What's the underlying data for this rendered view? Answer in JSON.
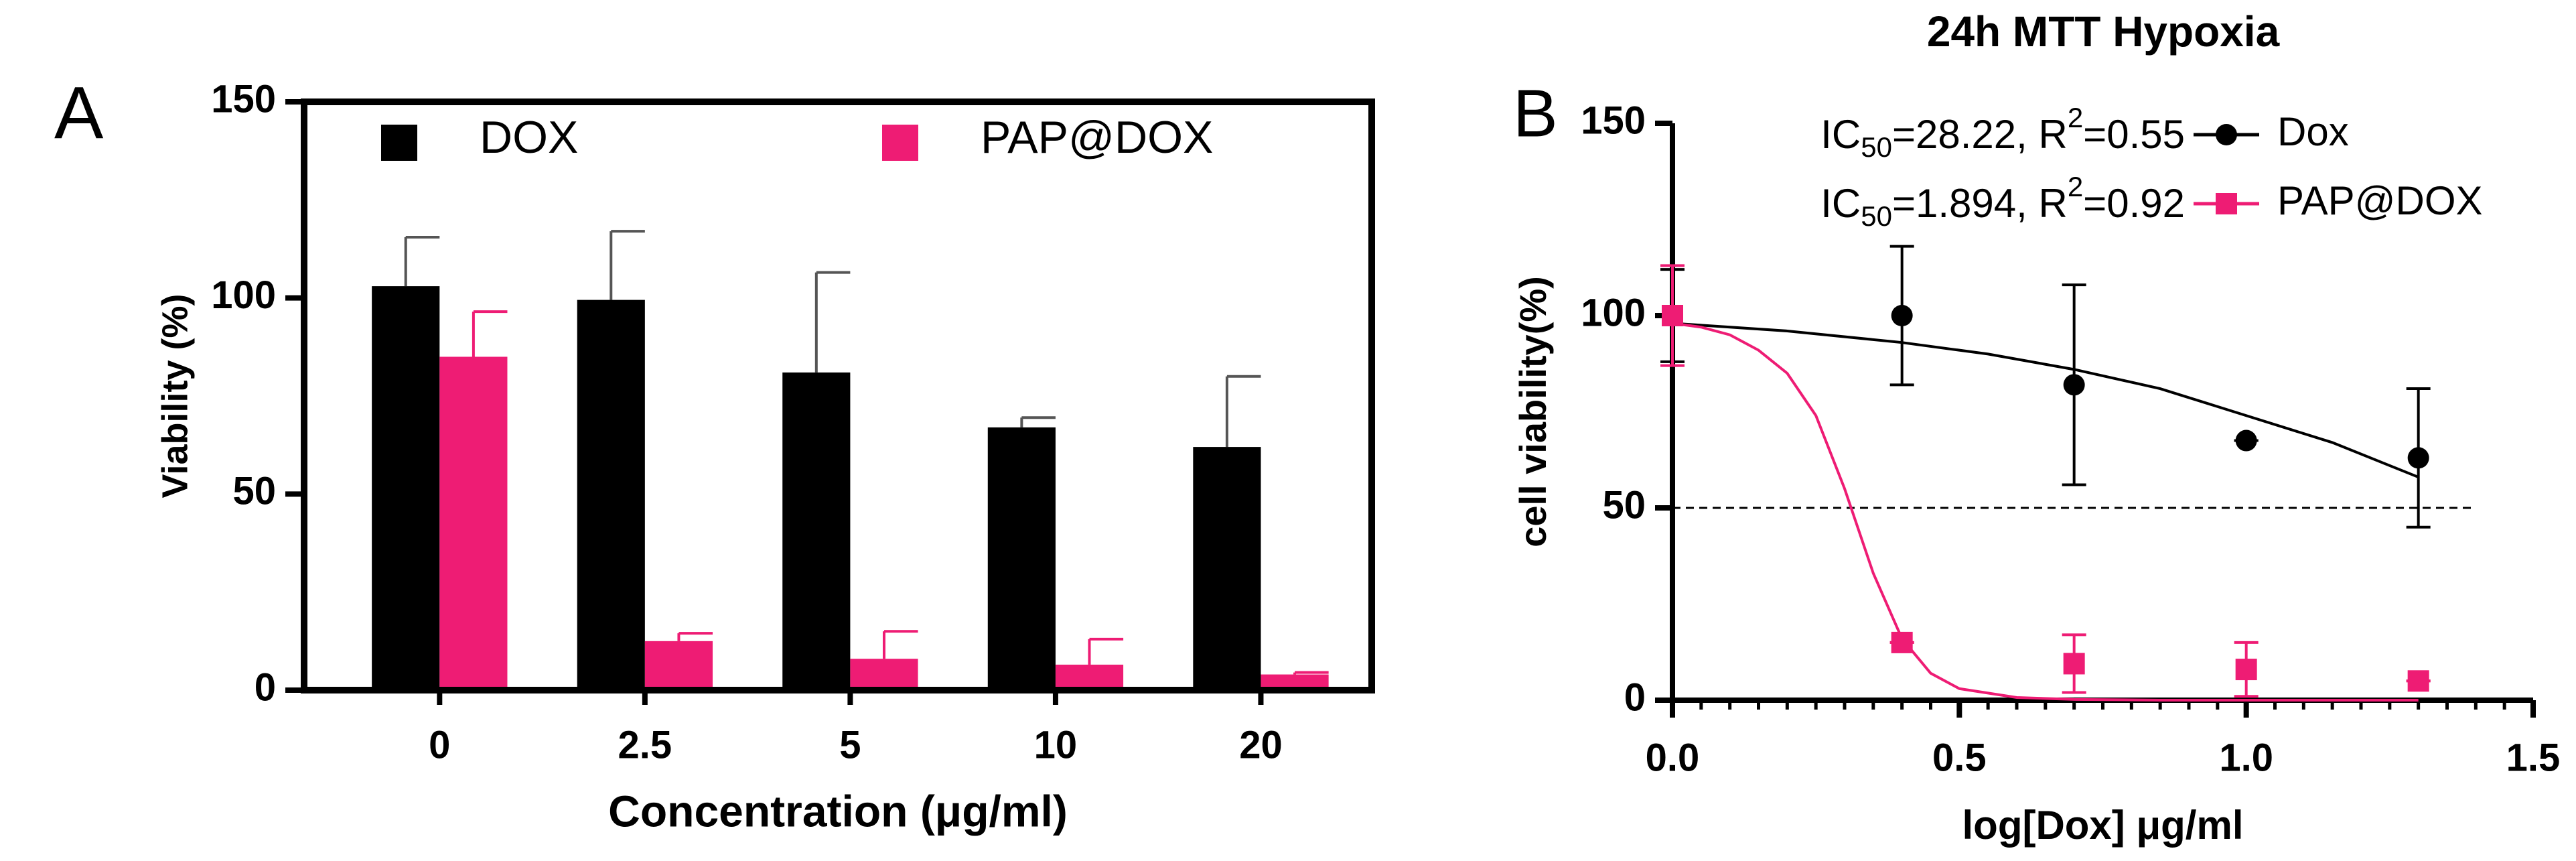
{
  "chart_data": [
    {
      "type": "bar",
      "panel_label": "A",
      "xlabel": "Concentration (μg/ml)",
      "ylabel": "Viability (%)",
      "categories": [
        "0",
        "2.5",
        "5",
        "10",
        "20"
      ],
      "series": [
        {
          "name": "DOX",
          "color": "#000000",
          "values": [
            103,
            99.5,
            81,
            67,
            62
          ],
          "errors": [
            12.5,
            17.5,
            25.5,
            2.5,
            18
          ]
        },
        {
          "name": "PAP@DOX",
          "color": "#ee1c74",
          "values": [
            85,
            12.5,
            8,
            6.5,
            4
          ],
          "errors": [
            11.5,
            2,
            7,
            6.5,
            0.5
          ]
        }
      ],
      "ylim": [
        0,
        150
      ],
      "yticks": [
        0,
        50,
        100,
        150
      ]
    },
    {
      "type": "scatter",
      "panel_label": "B",
      "title": "24h MTT Hypoxia",
      "xlabel": "log[Dox] μg/ml",
      "ylabel": "cell viability(%)",
      "x": [
        0,
        0.4,
        0.7,
        1.0,
        1.3
      ],
      "series": [
        {
          "name": "Dox",
          "color": "#000000",
          "marker": "circle",
          "values": [
            100,
            100,
            82,
            67.5,
            63
          ],
          "errors": [
            12,
            18,
            26,
            0,
            18
          ],
          "annotation": [
            "IC",
            "50",
            "=28.22, R",
            "2",
            "=0.55"
          ],
          "fit_x": [
            0,
            0.2,
            0.4,
            0.55,
            0.7,
            0.85,
            1.0,
            1.15,
            1.3
          ],
          "fit_values": [
            98,
            96,
            93,
            90,
            86,
            81,
            74,
            67,
            58
          ]
        },
        {
          "name": "PAP@DOX",
          "color": "#ee1c74",
          "marker": "square",
          "values": [
            100,
            15,
            9.5,
            8,
            5
          ],
          "errors": [
            13,
            0,
            7.5,
            7,
            0
          ],
          "annotation": [
            "IC",
            "50",
            "=1.894, R",
            "2",
            "=0.92"
          ],
          "fit_x": [
            0,
            0.05,
            0.1,
            0.15,
            0.2,
            0.25,
            0.3,
            0.35,
            0.4,
            0.45,
            0.5,
            0.6,
            0.7,
            0.85,
            1.0,
            1.15,
            1.3
          ],
          "fit_values": [
            98,
            97,
            95,
            91,
            85,
            74,
            55,
            33,
            16,
            7,
            3,
            0.7,
            0.2,
            0,
            0,
            0,
            0
          ]
        }
      ],
      "reference_line": 50,
      "xlim": [
        0,
        1.5
      ],
      "xticks": [
        {
          "value": 0,
          "label": "0.0"
        },
        0.5,
        {
          "value": 1.0,
          "label": "1.0"
        },
        1.5
      ],
      "ylim": [
        0,
        150
      ],
      "yticks": [
        0,
        50,
        100,
        150
      ]
    }
  ]
}
